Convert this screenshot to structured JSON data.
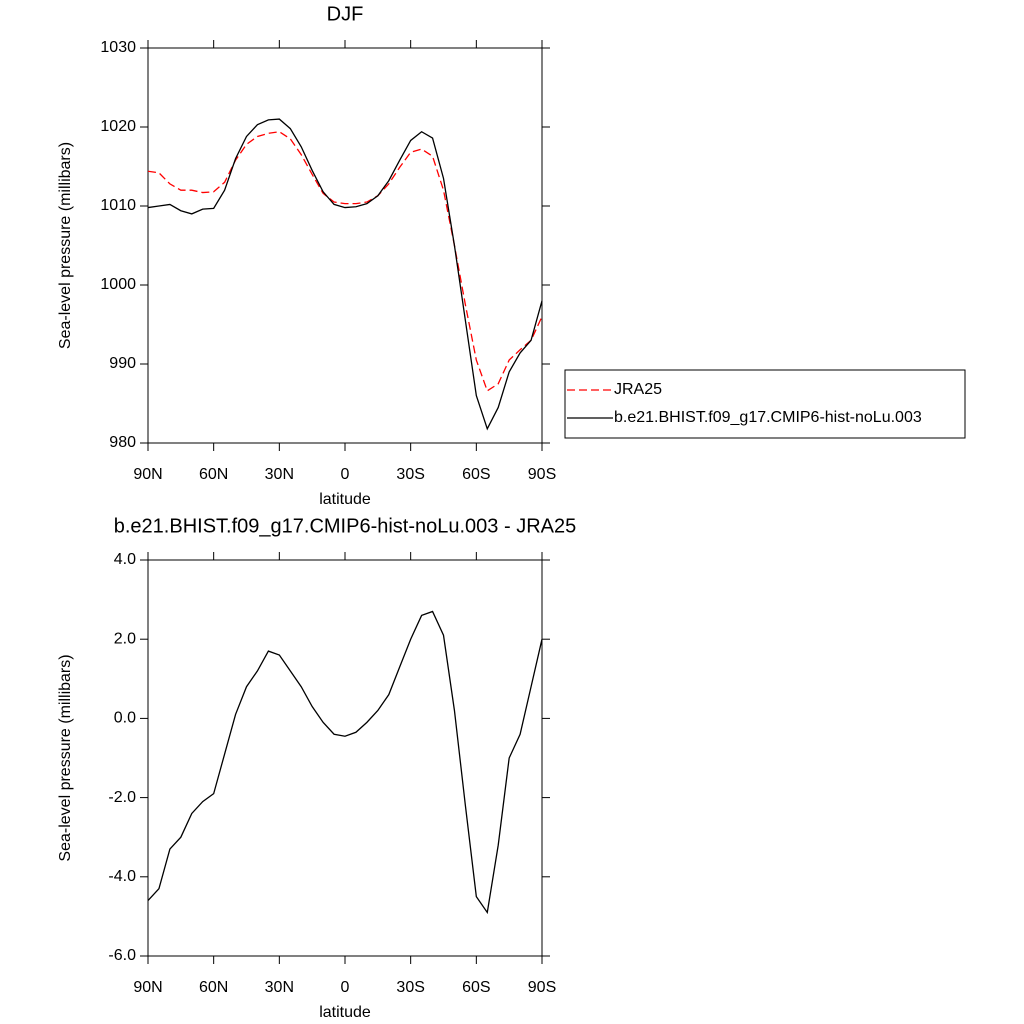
{
  "chart_data": [
    {
      "type": "line",
      "title": "DJF",
      "xlabel": "latitude",
      "ylabel": "Sea-level pressure (millibars)",
      "x": [
        90,
        85,
        80,
        75,
        70,
        65,
        60,
        55,
        50,
        45,
        40,
        35,
        30,
        25,
        20,
        15,
        10,
        5,
        0,
        -5,
        -10,
        -15,
        -20,
        -25,
        -30,
        -35,
        -40,
        -45,
        -50,
        -55,
        -60,
        -65,
        -70,
        -75,
        -80,
        -85,
        -90
      ],
      "series": [
        {
          "name": "JRA25",
          "color": "#ff0000",
          "dashed": true,
          "values": [
            1014.4,
            1014.2,
            1012.8,
            1012.0,
            1012.0,
            1011.7,
            1011.8,
            1013.0,
            1015.8,
            1017.8,
            1018.8,
            1019.2,
            1019.4,
            1018.5,
            1016.5,
            1014.0,
            1011.6,
            1010.5,
            1010.3,
            1010.3,
            1010.5,
            1011.3,
            1012.8,
            1014.9,
            1016.8,
            1017.2,
            1016.3,
            1012.0,
            1005.0,
            997.5,
            990.5,
            986.6,
            987.5,
            990.5,
            991.8,
            993.0,
            996.0
          ]
        },
        {
          "name": "b.e21.BHIST.f09_g17.CMIP6-hist-noLu.003",
          "color": "#000000",
          "dashed": false,
          "values": [
            1009.8,
            1010.0,
            1010.2,
            1009.4,
            1009.0,
            1009.6,
            1009.7,
            1012.0,
            1016.0,
            1018.8,
            1020.3,
            1020.9,
            1021.0,
            1019.8,
            1017.5,
            1014.5,
            1011.8,
            1010.2,
            1009.8,
            1009.9,
            1010.3,
            1011.3,
            1013.2,
            1015.8,
            1018.3,
            1019.4,
            1018.6,
            1013.5,
            1005.0,
            995.5,
            986.0,
            981.8,
            984.5,
            989.0,
            991.4,
            993.0,
            998.0
          ]
        }
      ],
      "xlim": [
        90,
        -90
      ],
      "xticks": [
        {
          "value": 90,
          "label": "90N"
        },
        {
          "value": 60,
          "label": "60N"
        },
        {
          "value": 30,
          "label": "30N"
        },
        0,
        {
          "value": -30,
          "label": "30S"
        },
        {
          "value": -60,
          "label": "60S"
        },
        {
          "value": -90,
          "label": "90S"
        }
      ],
      "ylim": [
        980,
        1030
      ],
      "yticks": [
        980,
        990,
        1000,
        1010,
        1020,
        1030
      ],
      "legend": "right"
    },
    {
      "type": "line",
      "title": "b.e21.BHIST.f09_g17.CMIP6-hist-noLu.003 - JRA25",
      "xlabel": "latitude",
      "ylabel": "Sea-level pressure (millibars)",
      "x": [
        90,
        85,
        80,
        75,
        70,
        65,
        60,
        55,
        50,
        45,
        40,
        35,
        30,
        25,
        20,
        15,
        10,
        5,
        0,
        -5,
        -10,
        -15,
        -20,
        -25,
        -30,
        -35,
        -40,
        -45,
        -50,
        -55,
        -60,
        -65,
        -70,
        -75,
        -80,
        -85,
        -90
      ],
      "color": "#000000",
      "values": [
        -4.6,
        -4.3,
        -3.3,
        -3.0,
        -2.4,
        -2.1,
        -1.9,
        -0.9,
        0.1,
        0.8,
        1.2,
        1.7,
        1.6,
        1.2,
        0.8,
        0.3,
        -0.1,
        -0.4,
        -0.45,
        -0.35,
        -0.1,
        0.2,
        0.6,
        1.3,
        2.0,
        2.6,
        2.7,
        2.1,
        0.2,
        -2.2,
        -4.5,
        -4.9,
        -3.2,
        -1.0,
        -0.4,
        0.8,
        2.0
      ],
      "xlim": [
        90,
        -90
      ],
      "xticks": [
        {
          "value": 90,
          "label": "90N"
        },
        {
          "value": 60,
          "label": "60N"
        },
        {
          "value": 30,
          "label": "30N"
        },
        0,
        {
          "value": -30,
          "label": "30S"
        },
        {
          "value": -60,
          "label": "60S"
        },
        {
          "value": -90,
          "label": "90S"
        }
      ],
      "ylim": [
        -6,
        4
      ],
      "yticks": [
        {
          "value": -6,
          "label": "-6.0"
        },
        {
          "value": -4,
          "label": "-4.0"
        },
        {
          "value": -2,
          "label": "-2.0"
        },
        {
          "value": 0,
          "label": "0.0"
        },
        {
          "value": 2,
          "label": "2.0"
        },
        {
          "value": 4,
          "label": "4.0"
        }
      ]
    }
  ]
}
